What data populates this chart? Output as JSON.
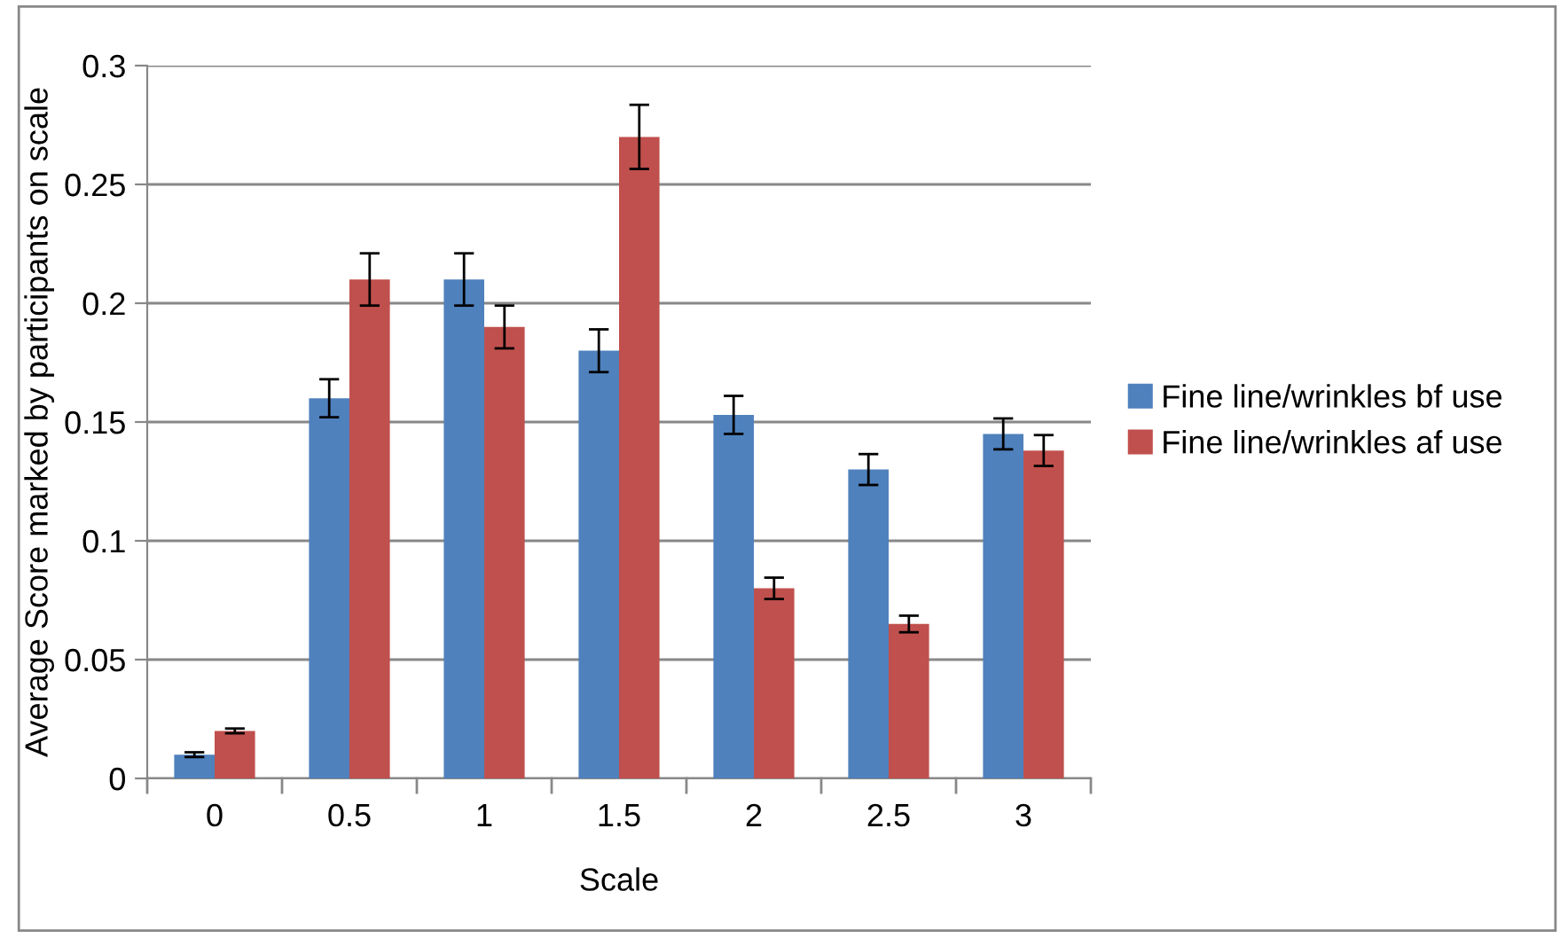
{
  "chart_data": {
    "type": "bar",
    "xlabel": "Scale",
    "ylabel": "Average Score marked by participants on scale",
    "categories": [
      "0",
      "0.5",
      "1",
      "1.5",
      "2",
      "2.5",
      "3"
    ],
    "series": [
      {
        "name": "Fine line/wrinkles bf use",
        "color": "#4f81bd",
        "values": [
          0.01,
          0.16,
          0.21,
          0.18,
          0.153,
          0.13,
          0.145
        ],
        "errors": [
          0.001,
          0.008,
          0.011,
          0.009,
          0.008,
          0.0065,
          0.0065
        ]
      },
      {
        "name": "Fine line/wrinkles af use",
        "color": "#c0504d",
        "values": [
          0.02,
          0.21,
          0.19,
          0.27,
          0.08,
          0.065,
          0.138
        ],
        "errors": [
          0.001,
          0.011,
          0.009,
          0.0135,
          0.0045,
          0.0035,
          0.0065
        ]
      }
    ],
    "ylim": [
      0,
      0.3
    ],
    "yticks": [
      0,
      0.05,
      0.1,
      0.15,
      0.2,
      0.25,
      0.3
    ],
    "grid": "y",
    "legend": "right"
  }
}
